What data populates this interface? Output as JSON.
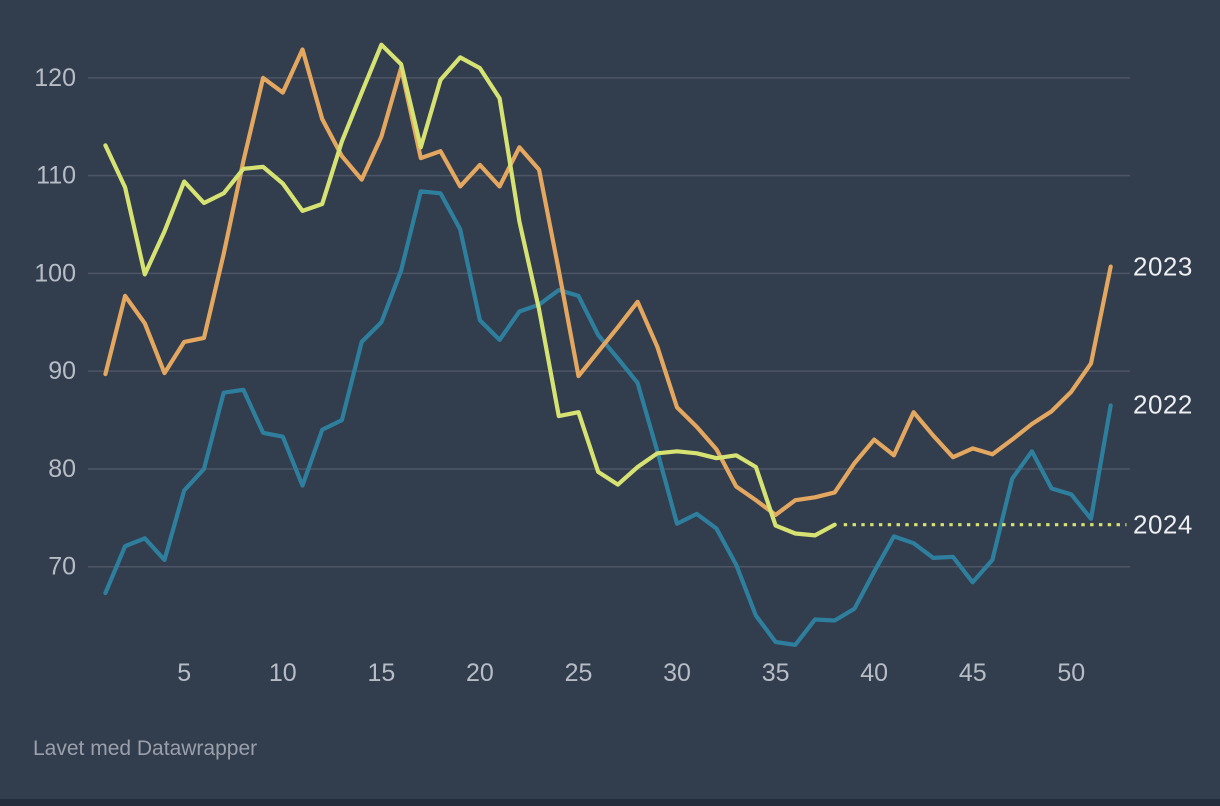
{
  "chart": {
    "background_color": "#323d4d",
    "grid_color": "#4e5665",
    "tick_label_color": "#b7bdc7",
    "series_label_color": "#edeff2",
    "attribution_color": "#9aa0ab"
  },
  "chart_data": {
    "type": "line",
    "title": "",
    "xlabel": "",
    "ylabel": "",
    "x_unit": "week-of-year",
    "x_tick_labels": [
      5,
      10,
      15,
      20,
      25,
      30,
      35,
      40,
      45,
      50
    ],
    "y_ticks": [
      70,
      80,
      90,
      100,
      110,
      120
    ],
    "x_range": [
      1,
      52
    ],
    "y_view_range": [
      61.5,
      124.5
    ],
    "grid": true,
    "legend_position": "line-end-labels-right",
    "series": [
      {
        "name": "2022",
        "color": "#2e7f9e",
        "start_week": 1,
        "values": [
          67.3,
          72.1,
          72.9,
          70.7,
          77.8,
          80,
          87.8,
          88.1,
          83.7,
          83.3,
          78.3,
          84,
          85,
          93,
          95,
          100.3,
          108.4,
          108.2,
          104.5,
          95.2,
          93.2,
          96.1,
          96.8,
          98.3,
          97.7,
          93.7,
          91.3,
          88.8,
          81.8,
          74.4,
          75.4,
          73.9,
          70.2,
          65,
          62.3,
          62,
          64.6,
          64.5,
          65.7,
          69.5,
          73.1,
          72.4,
          70.9,
          71,
          68.4,
          70.7,
          79,
          81.8,
          78,
          77.4,
          74.9,
          86.5
        ]
      },
      {
        "name": "2023",
        "color": "#e4a75f",
        "start_week": 1,
        "values": [
          89.7,
          97.7,
          94.9,
          89.8,
          93,
          93.4,
          102,
          111.5,
          120,
          118.5,
          122.9,
          115.8,
          112,
          109.6,
          114,
          121,
          111.8,
          112.5,
          108.9,
          111.1,
          108.9,
          112.9,
          110.6,
          100.3,
          89.5,
          92,
          94.5,
          97.1,
          92.5,
          86.3,
          84.3,
          82,
          78.2,
          76.8,
          75.3,
          76.8,
          77.1,
          77.6,
          80.6,
          83,
          81.4,
          85.8,
          83.4,
          81.2,
          82.1,
          81.5,
          83,
          84.6,
          85.9,
          87.9,
          90.8,
          100.7
        ]
      },
      {
        "name": "2024",
        "color": "#d6e372",
        "start_week": 1,
        "values": [
          113.1,
          108.8,
          99.9,
          104.3,
          109.4,
          107.2,
          108.2,
          110.7,
          110.9,
          109.2,
          106.4,
          107.1,
          113.5,
          118.5,
          123.4,
          121.4,
          112.9,
          119.8,
          122.1,
          121,
          117.9,
          105.3,
          96.3,
          85.4,
          85.8,
          79.7,
          78.4,
          80.2,
          81.6,
          81.8,
          81.6,
          81.1,
          81.4,
          80.2,
          74.2,
          73.4,
          73.2,
          74.3
        ],
        "dotted_extension": {
          "value": 74.3,
          "to_week": 52.8,
          "style": "dotted"
        }
      }
    ]
  },
  "footer": {
    "attribution": "Lavet med Datawrapper"
  }
}
